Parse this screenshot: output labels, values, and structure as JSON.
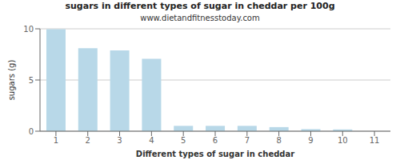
{
  "chart_data": {
    "type": "bar",
    "title": "sugars in different types of sugar in cheddar per 100g",
    "subtitle": "www.dietandfitnesstoday.com",
    "xlabel": "Different types of sugar in cheddar",
    "ylabel": "sugars (g)",
    "categories": [
      "1",
      "2",
      "3",
      "4",
      "5",
      "6",
      "7",
      "8",
      "9",
      "10",
      "11"
    ],
    "values": [
      9.97,
      8.1,
      7.9,
      7.07,
      0.52,
      0.52,
      0.52,
      0.4,
      0.2,
      0.17,
      0.0
    ],
    "color": "#b8d8e8",
    "ylim": [
      0,
      10
    ],
    "yticks": [
      0,
      5,
      10
    ],
    "grid": true
  }
}
